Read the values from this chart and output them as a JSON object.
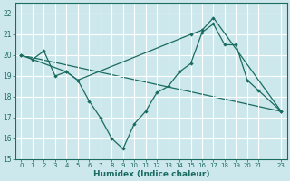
{
  "xlabel": "Humidex (Indice chaleur)",
  "bg_color": "#cde8ec",
  "grid_color": "#ffffff",
  "line_color": "#1a6b60",
  "xlim": [
    -0.5,
    23.5
  ],
  "ylim": [
    15,
    22.5
  ],
  "xtick_vals": [
    0,
    1,
    2,
    3,
    4,
    5,
    6,
    7,
    8,
    9,
    10,
    11,
    12,
    13,
    14,
    15,
    16,
    17,
    18,
    19,
    20,
    21,
    23
  ],
  "xtick_labels": [
    "0",
    "1",
    "2",
    "3",
    "4",
    "5",
    "6",
    "7",
    "8",
    "9",
    "10",
    "11",
    "12",
    "13",
    "14",
    "15",
    "16",
    "17",
    "18",
    "19",
    "20",
    "21",
    "23"
  ],
  "yticks": [
    15,
    16,
    17,
    18,
    19,
    20,
    21,
    22
  ],
  "series1_x": [
    0,
    1,
    2,
    3,
    4,
    5,
    6,
    7,
    8,
    9,
    10,
    11,
    12,
    13,
    14,
    15,
    16,
    17,
    18,
    19,
    20,
    21,
    23
  ],
  "series1_y": [
    20.0,
    19.8,
    20.2,
    19.0,
    19.2,
    18.8,
    17.8,
    17.0,
    16.0,
    15.5,
    16.7,
    17.3,
    18.2,
    18.5,
    19.2,
    19.6,
    21.1,
    21.5,
    20.5,
    20.5,
    18.8,
    18.3,
    17.3
  ],
  "series2_x": [
    0,
    4,
    5,
    15,
    16,
    17,
    23
  ],
  "series2_y": [
    20.0,
    19.2,
    18.8,
    21.0,
    21.2,
    21.8,
    17.3
  ],
  "series3_x": [
    0,
    23
  ],
  "series3_y": [
    20.0,
    17.3
  ]
}
